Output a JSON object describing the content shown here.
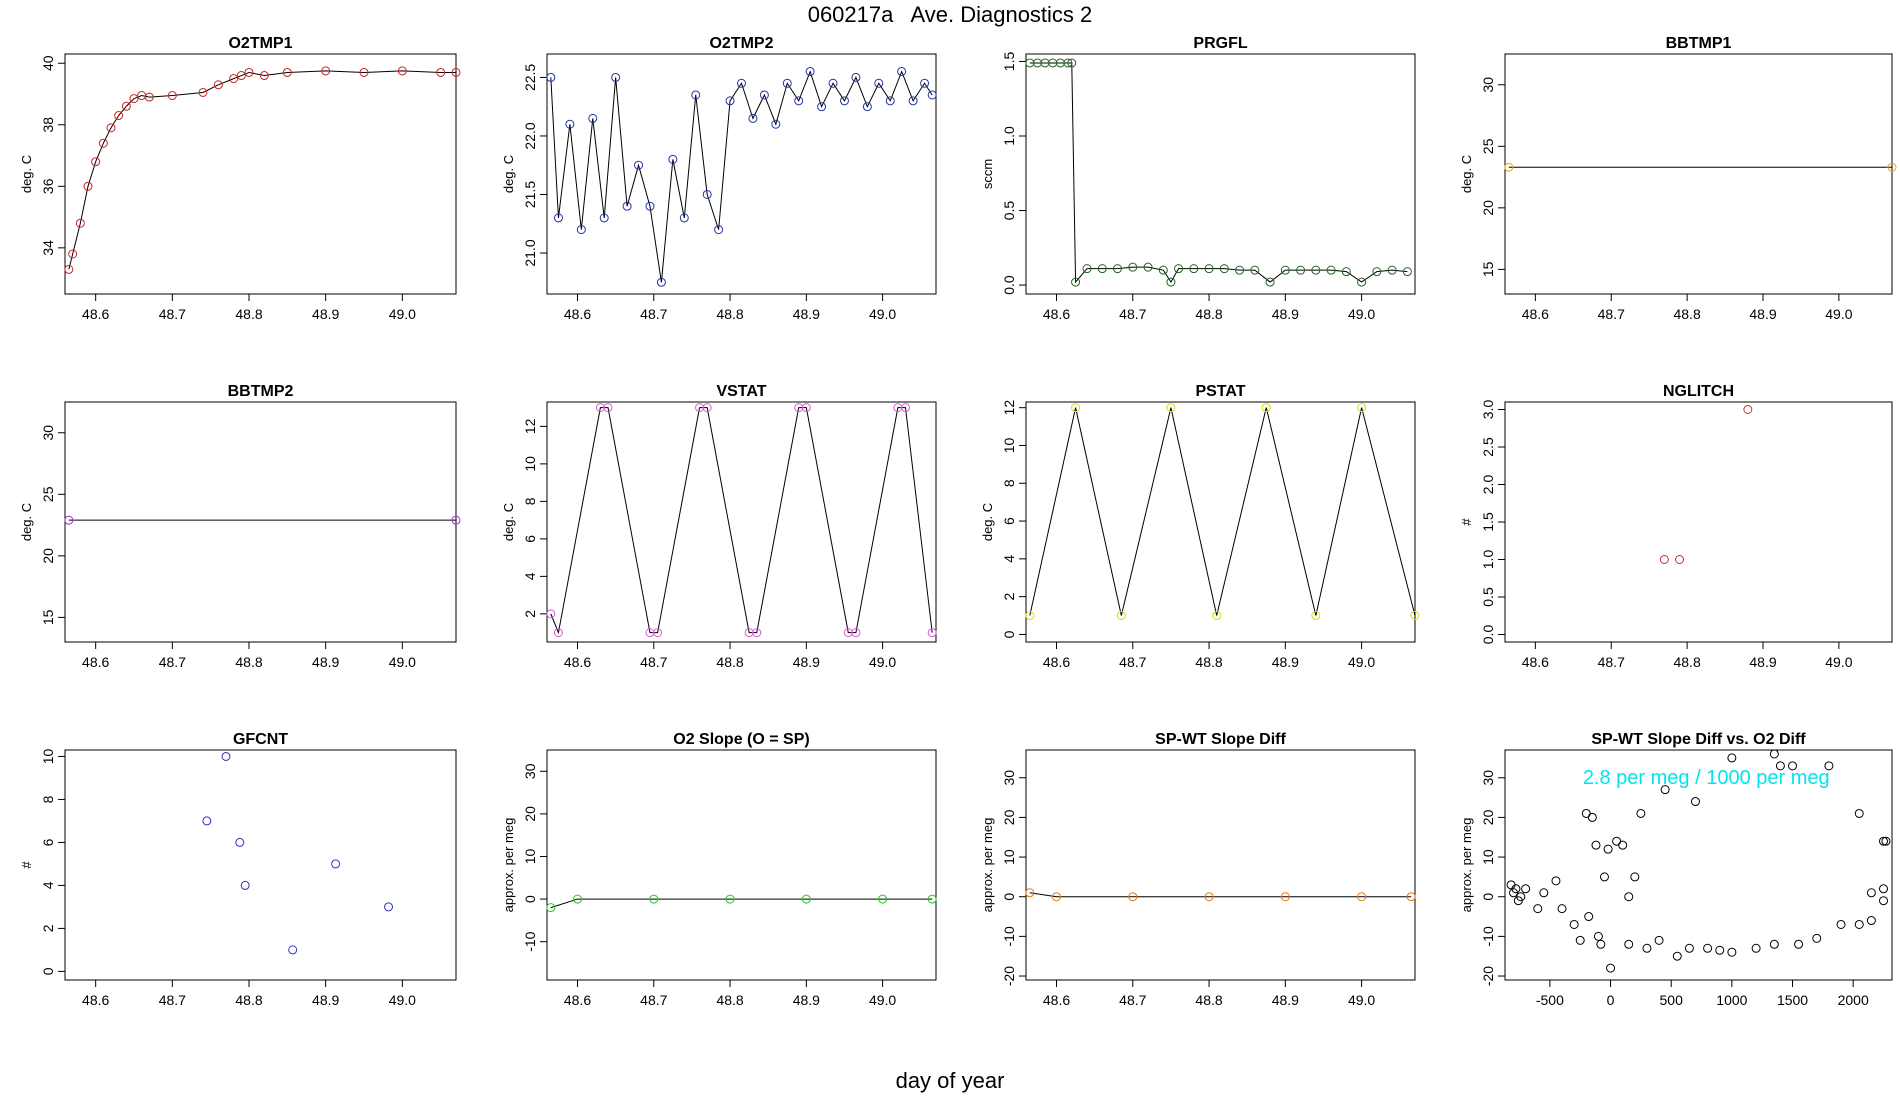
{
  "figure": {
    "title": "060217a   Ave. Diagnostics 2",
    "xlabel": "day of year"
  },
  "chart_data": [
    {
      "id": "o2tmp1",
      "type": "line",
      "title": "O2TMP1",
      "ylabel": "deg. C",
      "color": "#cc2222",
      "xlim": [
        48.56,
        49.07
      ],
      "ylim": [
        32.5,
        40.3
      ],
      "xticks": [
        48.6,
        48.7,
        48.8,
        48.9,
        49.0
      ],
      "xtick_labels": [
        "48.6",
        "48.7",
        "48.8",
        "48.9",
        "49.0"
      ],
      "yticks": [
        34,
        36,
        38,
        40
      ],
      "ytick_labels": [
        "34",
        "36",
        "38",
        "40"
      ],
      "x": [
        48.565,
        48.57,
        48.58,
        48.59,
        48.6,
        48.61,
        48.62,
        48.63,
        48.64,
        48.65,
        48.66,
        48.67,
        48.7,
        48.74,
        48.76,
        48.78,
        48.79,
        48.8,
        48.82,
        48.85,
        48.9,
        48.95,
        49.0,
        49.05,
        49.07
      ],
      "values": [
        33.3,
        33.8,
        34.8,
        36.0,
        36.8,
        37.4,
        37.9,
        38.3,
        38.6,
        38.85,
        38.95,
        38.9,
        38.95,
        39.05,
        39.3,
        39.5,
        39.6,
        39.7,
        39.6,
        39.7,
        39.75,
        39.7,
        39.75,
        39.7,
        39.7
      ]
    },
    {
      "id": "o2tmp2",
      "type": "line",
      "title": "O2TMP2",
      "ylabel": "deg. C",
      "color": "#2233aa",
      "xlim": [
        48.56,
        49.07
      ],
      "ylim": [
        20.65,
        22.7
      ],
      "xticks": [
        48.6,
        48.7,
        48.8,
        48.9,
        49.0
      ],
      "xtick_labels": [
        "48.6",
        "48.7",
        "48.8",
        "48.9",
        "49.0"
      ],
      "yticks": [
        21.0,
        21.5,
        22.0,
        22.5
      ],
      "ytick_labels": [
        "21.0",
        "21.5",
        "22.0",
        "22.5"
      ],
      "x": [
        48.565,
        48.575,
        48.59,
        48.605,
        48.62,
        48.635,
        48.65,
        48.665,
        48.68,
        48.695,
        48.71,
        48.725,
        48.74,
        48.755,
        48.77,
        48.785,
        48.8,
        48.815,
        48.83,
        48.845,
        48.86,
        48.875,
        48.89,
        48.905,
        48.92,
        48.935,
        48.95,
        48.965,
        48.98,
        48.995,
        49.01,
        49.025,
        49.04,
        49.055,
        49.065
      ],
      "values": [
        22.5,
        21.3,
        22.1,
        21.2,
        22.15,
        21.3,
        22.5,
        21.4,
        21.75,
        21.4,
        20.75,
        21.8,
        21.3,
        22.35,
        21.5,
        21.2,
        22.3,
        22.45,
        22.15,
        22.35,
        22.1,
        22.45,
        22.3,
        22.55,
        22.25,
        22.45,
        22.3,
        22.5,
        22.25,
        22.45,
        22.3,
        22.55,
        22.3,
        22.45,
        22.35
      ]
    },
    {
      "id": "prgfl",
      "type": "line",
      "title": "PRGFL",
      "ylabel": "sccm",
      "color": "#226622",
      "xlim": [
        48.56,
        49.07
      ],
      "ylim": [
        -0.06,
        1.55
      ],
      "xticks": [
        48.6,
        48.7,
        48.8,
        48.9,
        49.0
      ],
      "xtick_labels": [
        "48.6",
        "48.7",
        "48.8",
        "48.9",
        "49.0"
      ],
      "yticks": [
        0,
        0.5,
        1.0,
        1.5
      ],
      "ytick_labels": [
        "0.0",
        "0.5",
        "1.0",
        "1.5"
      ],
      "x": [
        48.565,
        48.575,
        48.585,
        48.595,
        48.605,
        48.615,
        48.62,
        48.625,
        48.64,
        48.66,
        48.68,
        48.7,
        48.72,
        48.74,
        48.75,
        48.76,
        48.78,
        48.8,
        48.82,
        48.84,
        48.86,
        48.88,
        48.9,
        48.92,
        48.94,
        48.96,
        48.98,
        49.0,
        49.02,
        49.04,
        49.06
      ],
      "values": [
        1.49,
        1.49,
        1.49,
        1.49,
        1.49,
        1.49,
        1.49,
        0.02,
        0.11,
        0.11,
        0.11,
        0.12,
        0.12,
        0.1,
        0.02,
        0.11,
        0.11,
        0.11,
        0.11,
        0.1,
        0.1,
        0.02,
        0.1,
        0.1,
        0.1,
        0.1,
        0.09,
        0.02,
        0.09,
        0.1,
        0.09
      ]
    },
    {
      "id": "bbtmp1",
      "type": "line",
      "title": "BBTMP1",
      "ylabel": "deg. C",
      "color": "#e8a317",
      "xlim": [
        48.56,
        49.07
      ],
      "ylim": [
        13,
        32.5
      ],
      "xticks": [
        48.6,
        48.7,
        48.8,
        48.9,
        49.0
      ],
      "xtick_labels": [
        "48.6",
        "48.7",
        "48.8",
        "48.9",
        "49.0"
      ],
      "yticks": [
        15,
        20,
        25,
        30
      ],
      "ytick_labels": [
        "15",
        "20",
        "25",
        "30"
      ],
      "x": [
        48.565,
        49.07
      ],
      "values": [
        23.3,
        23.3
      ]
    },
    {
      "id": "bbtmp2",
      "type": "line",
      "title": "BBTMP2",
      "ylabel": "deg. C",
      "color": "#9933cc",
      "xlim": [
        48.56,
        49.07
      ],
      "ylim": [
        13,
        32.5
      ],
      "xticks": [
        48.6,
        48.7,
        48.8,
        48.9,
        49.0
      ],
      "xtick_labels": [
        "48.6",
        "48.7",
        "48.8",
        "48.9",
        "49.0"
      ],
      "yticks": [
        15,
        20,
        25,
        30
      ],
      "ytick_labels": [
        "15",
        "20",
        "25",
        "30"
      ],
      "x": [
        48.565,
        49.07
      ],
      "values": [
        22.9,
        22.9
      ]
    },
    {
      "id": "vstat",
      "type": "line",
      "title": "VSTAT",
      "ylabel": "deg. C",
      "color": "#dd55dd",
      "xlim": [
        48.56,
        49.07
      ],
      "ylim": [
        0.5,
        13.3
      ],
      "xticks": [
        48.6,
        48.7,
        48.8,
        48.9,
        49.0
      ],
      "xtick_labels": [
        "48.6",
        "48.7",
        "48.8",
        "48.9",
        "49.0"
      ],
      "yticks": [
        2,
        4,
        6,
        8,
        10,
        12
      ],
      "ytick_labels": [
        "2",
        "4",
        "6",
        "8",
        "10",
        "12"
      ],
      "x": [
        48.565,
        48.575,
        48.63,
        48.64,
        48.695,
        48.705,
        48.76,
        48.77,
        48.825,
        48.835,
        48.89,
        48.9,
        48.955,
        48.965,
        49.02,
        49.03,
        49.065
      ],
      "values": [
        2,
        1,
        13,
        13,
        1,
        1,
        13,
        13,
        1,
        1,
        13,
        13,
        1,
        1,
        13,
        13,
        1
      ]
    },
    {
      "id": "pstat",
      "type": "line",
      "title": "PSTAT",
      "ylabel": "deg. C",
      "color": "#dddd00",
      "xlim": [
        48.56,
        49.07
      ],
      "ylim": [
        -0.4,
        12.3
      ],
      "xticks": [
        48.6,
        48.7,
        48.8,
        48.9,
        49.0
      ],
      "xtick_labels": [
        "48.6",
        "48.7",
        "48.8",
        "48.9",
        "49.0"
      ],
      "yticks": [
        0,
        2,
        4,
        6,
        8,
        10,
        12
      ],
      "ytick_labels": [
        "0",
        "2",
        "4",
        "6",
        "8",
        "10",
        "12"
      ],
      "x": [
        48.565,
        48.625,
        48.685,
        48.75,
        48.81,
        48.875,
        48.94,
        49.0,
        49.07
      ],
      "values": [
        1,
        12,
        1,
        12,
        1,
        12,
        1,
        12,
        1
      ]
    },
    {
      "id": "nglitch",
      "type": "scatter",
      "title": "NGLITCH",
      "ylabel": "#",
      "color": "#bb3333",
      "xlim": [
        48.56,
        49.07
      ],
      "ylim": [
        -0.1,
        3.1
      ],
      "xticks": [
        48.6,
        48.7,
        48.8,
        48.9,
        49.0
      ],
      "xtick_labels": [
        "48.6",
        "48.7",
        "48.8",
        "48.9",
        "49.0"
      ],
      "yticks": [
        0,
        0.5,
        1.0,
        1.5,
        2.0,
        2.5,
        3.0
      ],
      "ytick_labels": [
        "0.0",
        "0.5",
        "1.0",
        "1.5",
        "2.0",
        "2.5",
        "3.0"
      ],
      "x": [
        48.77,
        48.79,
        48.88
      ],
      "values": [
        1,
        1,
        3
      ]
    },
    {
      "id": "gfcnt",
      "type": "scatter",
      "title": "GFCNT",
      "ylabel": "#",
      "color": "#3333bb",
      "xlim": [
        48.56,
        49.07
      ],
      "ylim": [
        -0.4,
        10.3
      ],
      "xticks": [
        48.6,
        48.7,
        48.8,
        48.9,
        49.0
      ],
      "xtick_labels": [
        "48.6",
        "48.7",
        "48.8",
        "48.9",
        "49.0"
      ],
      "yticks": [
        0,
        2,
        4,
        6,
        8,
        10
      ],
      "ytick_labels": [
        "0",
        "2",
        "4",
        "6",
        "8",
        "10"
      ],
      "x": [
        48.745,
        48.77,
        48.788,
        48.795,
        48.857,
        48.913,
        48.982
      ],
      "values": [
        7,
        10,
        6,
        4,
        1,
        5,
        3
      ]
    },
    {
      "id": "o2slope",
      "type": "line",
      "title": "O2 Slope (O = SP)",
      "ylabel": "approx. per meg",
      "color": "#22cc22",
      "xlim": [
        48.56,
        49.07
      ],
      "ylim": [
        -19,
        35
      ],
      "xticks": [
        48.6,
        48.7,
        48.8,
        48.9,
        49.0
      ],
      "xtick_labels": [
        "48.6",
        "48.7",
        "48.8",
        "48.9",
        "49.0"
      ],
      "yticks": [
        -10,
        0,
        10,
        20,
        30
      ],
      "ytick_labels": [
        "-10",
        "0",
        "10",
        "20",
        "30"
      ],
      "x": [
        48.565,
        48.6,
        48.7,
        48.8,
        48.9,
        49.0,
        49.065
      ],
      "values": [
        -2,
        0,
        0,
        0,
        0,
        0,
        0
      ]
    },
    {
      "id": "spwt",
      "type": "line",
      "title": "SP-WT Slope Diff",
      "ylabel": "approx. per meg",
      "color": "#ee7700",
      "xlim": [
        48.56,
        49.07
      ],
      "ylim": [
        -21,
        37
      ],
      "xticks": [
        48.6,
        48.7,
        48.8,
        48.9,
        49.0
      ],
      "xtick_labels": [
        "48.6",
        "48.7",
        "48.8",
        "48.9",
        "49.0"
      ],
      "yticks": [
        -20,
        -10,
        0,
        10,
        20,
        30
      ],
      "ytick_labels": [
        "-20",
        "-10",
        "0",
        "10",
        "20",
        "30"
      ],
      "x": [
        48.565,
        48.6,
        48.7,
        48.8,
        48.9,
        49.0,
        49.065
      ],
      "values": [
        1,
        0,
        0,
        0,
        0,
        0,
        0
      ]
    },
    {
      "id": "spwt_vs_o2",
      "type": "scatter",
      "title": "SP-WT Slope Diff vs. O2 Diff",
      "ylabel": "approx. per meg",
      "color": "#000000",
      "annotation": "2.8 per meg / 1000 per meg",
      "annotation_color": "#00e5ee",
      "xlim": [
        -870,
        2320
      ],
      "ylim": [
        -21,
        37
      ],
      "xticks": [
        -500,
        0,
        500,
        1000,
        1500,
        2000
      ],
      "xtick_labels": [
        "-500",
        "0",
        "500",
        "1000",
        "1500",
        "2000"
      ],
      "yticks": [
        -20,
        -10,
        0,
        10,
        20,
        30
      ],
      "ytick_labels": [
        "-20",
        "-10",
        "0",
        "10",
        "20",
        "30"
      ],
      "x": [
        450,
        700,
        1000,
        1350,
        1400,
        1500,
        1800,
        2050,
        2250,
        2270,
        2150,
        2250,
        -820,
        -800,
        -780,
        -760,
        -740,
        -700,
        -600,
        -550,
        -450,
        -400,
        -200,
        -150,
        -100,
        -80,
        -50,
        -20,
        50,
        100,
        150,
        200,
        250,
        -300,
        -250,
        -180,
        0,
        -120,
        150,
        300,
        400,
        550,
        650,
        800,
        900,
        1000,
        1200,
        1350,
        1550,
        1700,
        1900,
        2050,
        2150,
        2250
      ],
      "values": [
        27,
        24,
        35,
        36,
        33,
        33,
        33,
        21,
        14,
        14,
        1,
        2,
        3,
        1,
        2,
        -1,
        0,
        2,
        -3,
        1,
        4,
        -3,
        21,
        20,
        -10,
        -12,
        5,
        12,
        14,
        13,
        0,
        5,
        21,
        -7,
        -11,
        -5,
        -18,
        13,
        -12,
        -13,
        -11,
        -15,
        -13,
        -13,
        -13.5,
        -14,
        -13,
        -12,
        -12,
        -10.5,
        -7,
        -7,
        -6,
        -1
      ]
    }
  ]
}
